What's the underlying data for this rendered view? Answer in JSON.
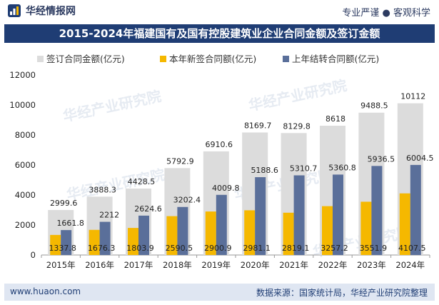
{
  "header": {
    "brand": "华经情报网",
    "slogan": "专业严谨 ● 客观科学",
    "title": "2015-2024年福建国有及国有控股建筑业企业合同金额及签订金额"
  },
  "footer": {
    "website": "www.huaon.com",
    "source": "数据来源：国家统计局，华经产业研究院整理"
  },
  "watermark": "华经产业研究院",
  "chart_data": {
    "type": "bar",
    "categories": [
      "2015年",
      "2016年",
      "2017年",
      "2018年",
      "2019年",
      "2020年",
      "2021年",
      "2022年",
      "2023年",
      "2024年"
    ],
    "series": [
      {
        "name": "签订合同金额(亿元)",
        "color": "#dcdcdc",
        "values": [
          2999.6,
          3888.3,
          4428.5,
          5792.9,
          6910.6,
          8169.7,
          8129.8,
          8618,
          9488.5,
          10112
        ],
        "labels": [
          "2999.6",
          "3888.3",
          "4428.5",
          "5792.9",
          "6910.6",
          "8169.7",
          "8129.8",
          "8618",
          "9488.5",
          "10112"
        ]
      },
      {
        "name": "本年新签合同额(亿元)",
        "color": "#f5b800",
        "values": [
          1337.8,
          1676.3,
          1803.9,
          2590.5,
          2900.9,
          2981.1,
          2819.1,
          3257.2,
          3551.9,
          4107.5
        ],
        "labels": [
          "1337.8",
          "1676.3",
          "1803.9",
          "2590.5",
          "2900.9",
          "2981.1",
          "2819.1",
          "3257.2",
          "3551.9",
          "4107.5"
        ]
      },
      {
        "name": "上年结转合同额(亿元)",
        "color": "#5a6f9a",
        "values": [
          1661.8,
          2212,
          2624.6,
          3202.4,
          4009.8,
          5188.6,
          5310.7,
          5360.8,
          5936.5,
          6004.5
        ],
        "labels": [
          "1661.8",
          "2212",
          "2624.6",
          "3202.4",
          "4009.8",
          "5188.6",
          "5310.7",
          "5360.8",
          "5936.5",
          "6004.5"
        ]
      }
    ],
    "ylim": [
      0,
      12000
    ],
    "yticks": [
      "0",
      "2000",
      "4000",
      "6000",
      "8000",
      "10000",
      "12000"
    ],
    "title": "2015-2024年福建国有及国有控股建筑业企业合同金额及签订金额",
    "xlabel": "",
    "ylabel": "",
    "legend": "top"
  }
}
